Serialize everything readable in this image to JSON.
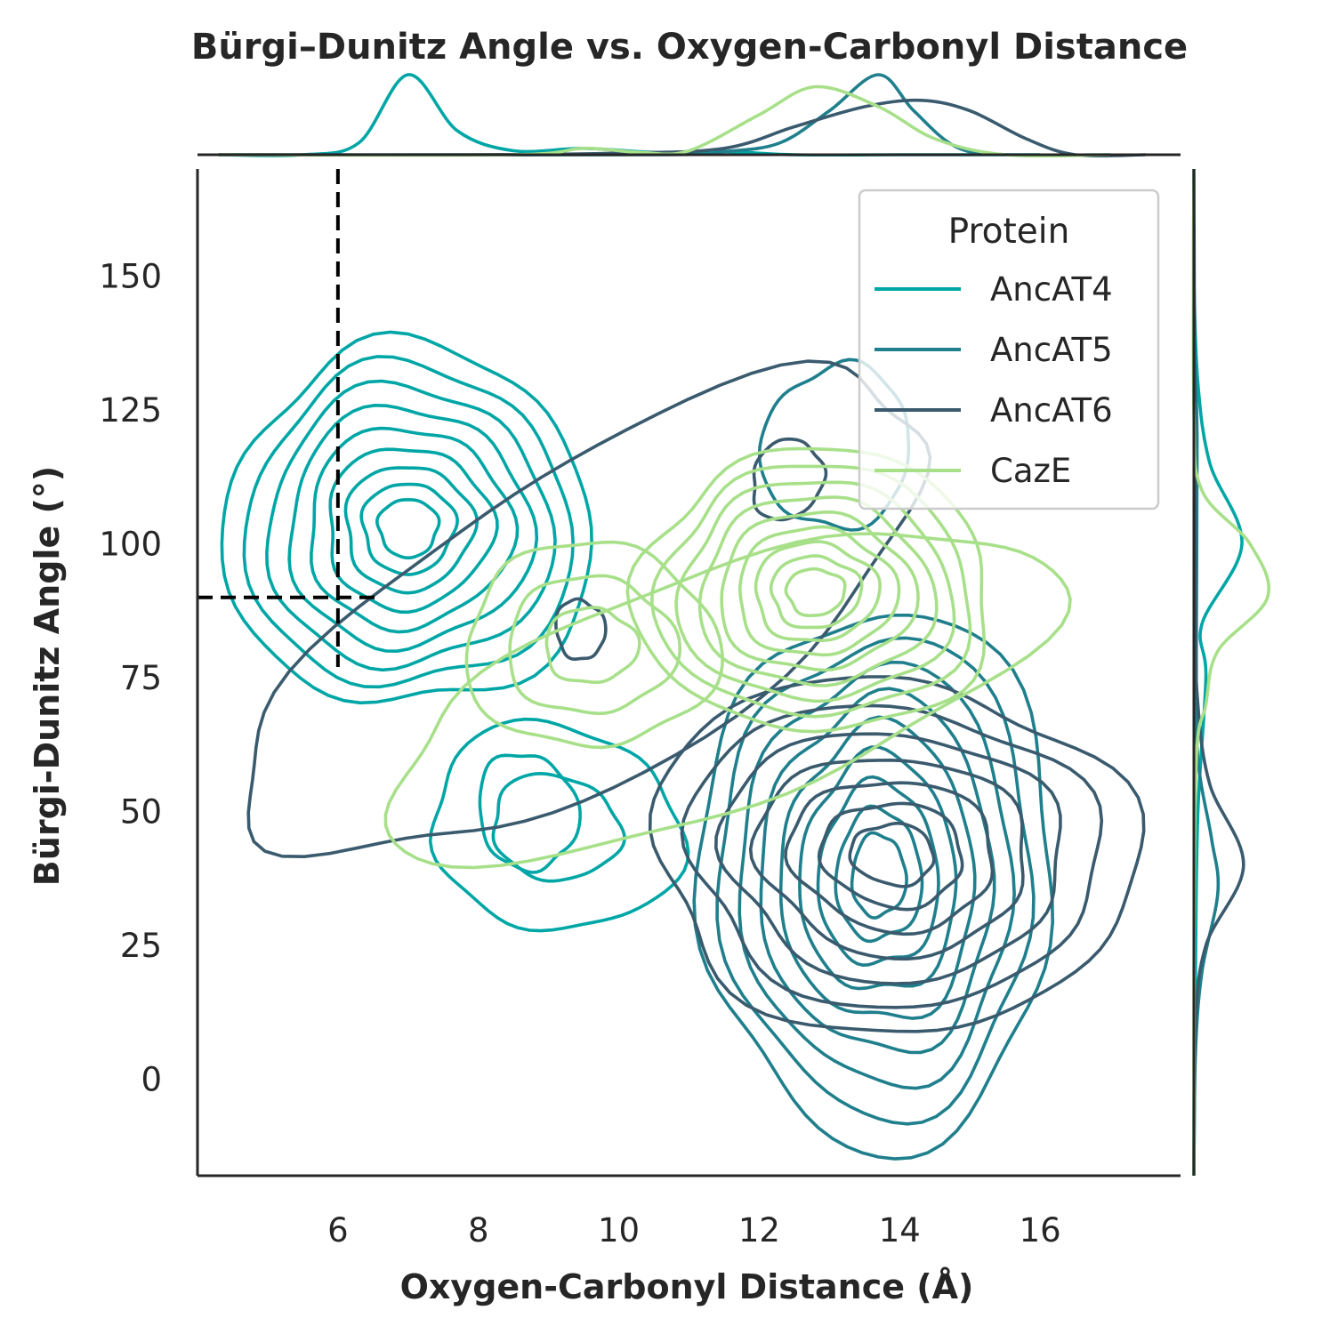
{
  "chart_data": {
    "type": "kde-contour",
    "title": "Bürgi–Dunitz Angle vs. Oxygen-Carbonyl Distance",
    "xlabel": "Oxygen-Carbonyl Distance (Å)",
    "ylabel": "Bürgi-Dunitz Angle (°)",
    "xlim": [
      4,
      18
    ],
    "ylim": [
      -18,
      170
    ],
    "xticks": [
      6,
      8,
      10,
      12,
      14,
      16
    ],
    "yticks": [
      0,
      25,
      50,
      75,
      100,
      125,
      150
    ],
    "grid": false,
    "legend": {
      "title": "Protein",
      "position": "upper right"
    },
    "reference_lines": [
      {
        "orientation": "vertical",
        "x": 6,
        "y_range": [
          77,
          170
        ],
        "style": "dashed",
        "color": "#000000"
      },
      {
        "orientation": "horizontal",
        "y": 90,
        "x_range": [
          4,
          6.6
        ],
        "style": "dashed",
        "color": "#000000"
      }
    ],
    "series": [
      {
        "name": "AncAT4",
        "color": "#00a6a6",
        "clusters": [
          {
            "center": [
              7.0,
              103
            ],
            "sx": 1.05,
            "sy": 13.5,
            "rot": 0,
            "levels": 9,
            "outer_scale": 2.5
          },
          {
            "center": [
              9.1,
              47
            ],
            "sx": 0.9,
            "sy": 9.5,
            "rot": -0.25,
            "levels": 2,
            "outer_scale": 2.0
          },
          {
            "center": [
              8.7,
              50
            ],
            "sx": 0.35,
            "sy": 5.5,
            "rot": 0.3,
            "levels": 1,
            "outer_scale": 2.0
          }
        ],
        "marginal_x": [
          [
            4.3,
            0.0
          ],
          [
            5.5,
            0.0
          ],
          [
            6.3,
            0.15
          ],
          [
            7.0,
            1.0
          ],
          [
            7.7,
            0.3
          ],
          [
            8.5,
            0.05
          ],
          [
            9.5,
            0.08
          ],
          [
            10.5,
            0.03
          ],
          [
            11.5,
            0.04
          ],
          [
            12.5,
            0.0
          ],
          [
            14.0,
            0.0
          ],
          [
            16.0,
            0.0
          ]
        ],
        "marginal_y": [
          [
            -18,
            0.0
          ],
          [
            20,
            0.02
          ],
          [
            50,
            0.05
          ],
          [
            75,
            0.15
          ],
          [
            85,
            0.1
          ],
          [
            100,
            0.6
          ],
          [
            115,
            0.2
          ],
          [
            130,
            0.05
          ],
          [
            150,
            0.0
          ],
          [
            170,
            0.0
          ]
        ]
      },
      {
        "name": "AncAT5",
        "color": "#1f7f8c",
        "clusters": [
          {
            "center": [
              13.7,
              38
            ],
            "sx": 0.9,
            "sy": 18,
            "rot": 0,
            "levels": 9,
            "outer_scale": 2.8
          },
          {
            "center": [
              13.1,
              118
            ],
            "sx": 0.75,
            "sy": 11,
            "rot": -0.3,
            "levels": 1,
            "outer_scale": 1.4
          }
        ],
        "marginal_x": [
          [
            4.3,
            0.0
          ],
          [
            10.5,
            0.0
          ],
          [
            11.5,
            0.04
          ],
          [
            12.3,
            0.15
          ],
          [
            13.0,
            0.55
          ],
          [
            13.7,
            1.0
          ],
          [
            14.2,
            0.55
          ],
          [
            14.8,
            0.1
          ],
          [
            15.5,
            0.0
          ],
          [
            17.0,
            0.0
          ]
        ],
        "marginal_y": [
          [
            -18,
            0.0
          ],
          [
            5,
            0.02
          ],
          [
            20,
            0.1
          ],
          [
            35,
            0.3
          ],
          [
            45,
            0.22
          ],
          [
            60,
            0.05
          ],
          [
            80,
            0.03
          ],
          [
            120,
            0.04
          ],
          [
            140,
            0.0
          ],
          [
            170,
            0.0
          ]
        ]
      },
      {
        "name": "AncAT6",
        "color": "#3a5a6e",
        "clusters": [
          {
            "center": [
              13.9,
              42
            ],
            "sx": 1.15,
            "sy": 11,
            "rot": -0.1,
            "levels": 7,
            "outer_scale": 3.0
          },
          {
            "center": [
              9.6,
              86
            ],
            "sx": 2.5,
            "sy": 13,
            "rot": 0.55,
            "levels": 1,
            "outer_scale": 2.2
          },
          {
            "center": [
              12.4,
              112
            ],
            "sx": 0.35,
            "sy": 5.5,
            "rot": -0.4,
            "levels": 1,
            "outer_scale": 1.4
          },
          {
            "center": [
              9.45,
              84
            ],
            "sx": 0.25,
            "sy": 4,
            "rot": 0.2,
            "levels": 1,
            "outer_scale": 1.4
          }
        ],
        "marginal_x": [
          [
            4.3,
            0.0
          ],
          [
            8.0,
            0.0
          ],
          [
            10.0,
            0.02
          ],
          [
            11.5,
            0.08
          ],
          [
            12.5,
            0.35
          ],
          [
            13.5,
            0.6
          ],
          [
            14.3,
            0.68
          ],
          [
            15.0,
            0.55
          ],
          [
            15.8,
            0.2
          ],
          [
            16.5,
            0.0
          ],
          [
            17.5,
            0.0
          ]
        ],
        "marginal_y": [
          [
            -18,
            0.0
          ],
          [
            10,
            0.02
          ],
          [
            25,
            0.15
          ],
          [
            40,
            0.62
          ],
          [
            55,
            0.2
          ],
          [
            70,
            0.05
          ],
          [
            90,
            0.02
          ],
          [
            170,
            0.0
          ]
        ]
      },
      {
        "name": "CazE",
        "color": "#a8e08a",
        "clusters": [
          {
            "center": [
              12.8,
              91
            ],
            "sx": 1.05,
            "sy": 11,
            "rot": 0,
            "levels": 9,
            "outer_scale": 2.4
          },
          {
            "center": [
              9.6,
              81
            ],
            "sx": 0.95,
            "sy": 10,
            "rot": 0,
            "levels": 3,
            "outer_scale": 1.9
          },
          {
            "center": [
              11.4,
              72
            ],
            "sx": 2.3,
            "sy": 10,
            "rot": 0.35,
            "levels": 1,
            "outer_scale": 2.2
          }
        ],
        "marginal_x": [
          [
            4.3,
            0.0
          ],
          [
            8.5,
            0.0
          ],
          [
            9.5,
            0.08
          ],
          [
            10.3,
            0.03
          ],
          [
            11.0,
            0.05
          ],
          [
            12.0,
            0.5
          ],
          [
            12.8,
            0.85
          ],
          [
            13.7,
            0.6
          ],
          [
            14.5,
            0.2
          ],
          [
            15.5,
            0.0
          ],
          [
            17.0,
            0.0
          ]
        ],
        "marginal_y": [
          [
            -18,
            0.0
          ],
          [
            55,
            0.02
          ],
          [
            70,
            0.15
          ],
          [
            80,
            0.3
          ],
          [
            90,
            0.92
          ],
          [
            100,
            0.7
          ],
          [
            110,
            0.1
          ],
          [
            125,
            0.0
          ],
          [
            170,
            0.0
          ]
        ]
      }
    ]
  }
}
